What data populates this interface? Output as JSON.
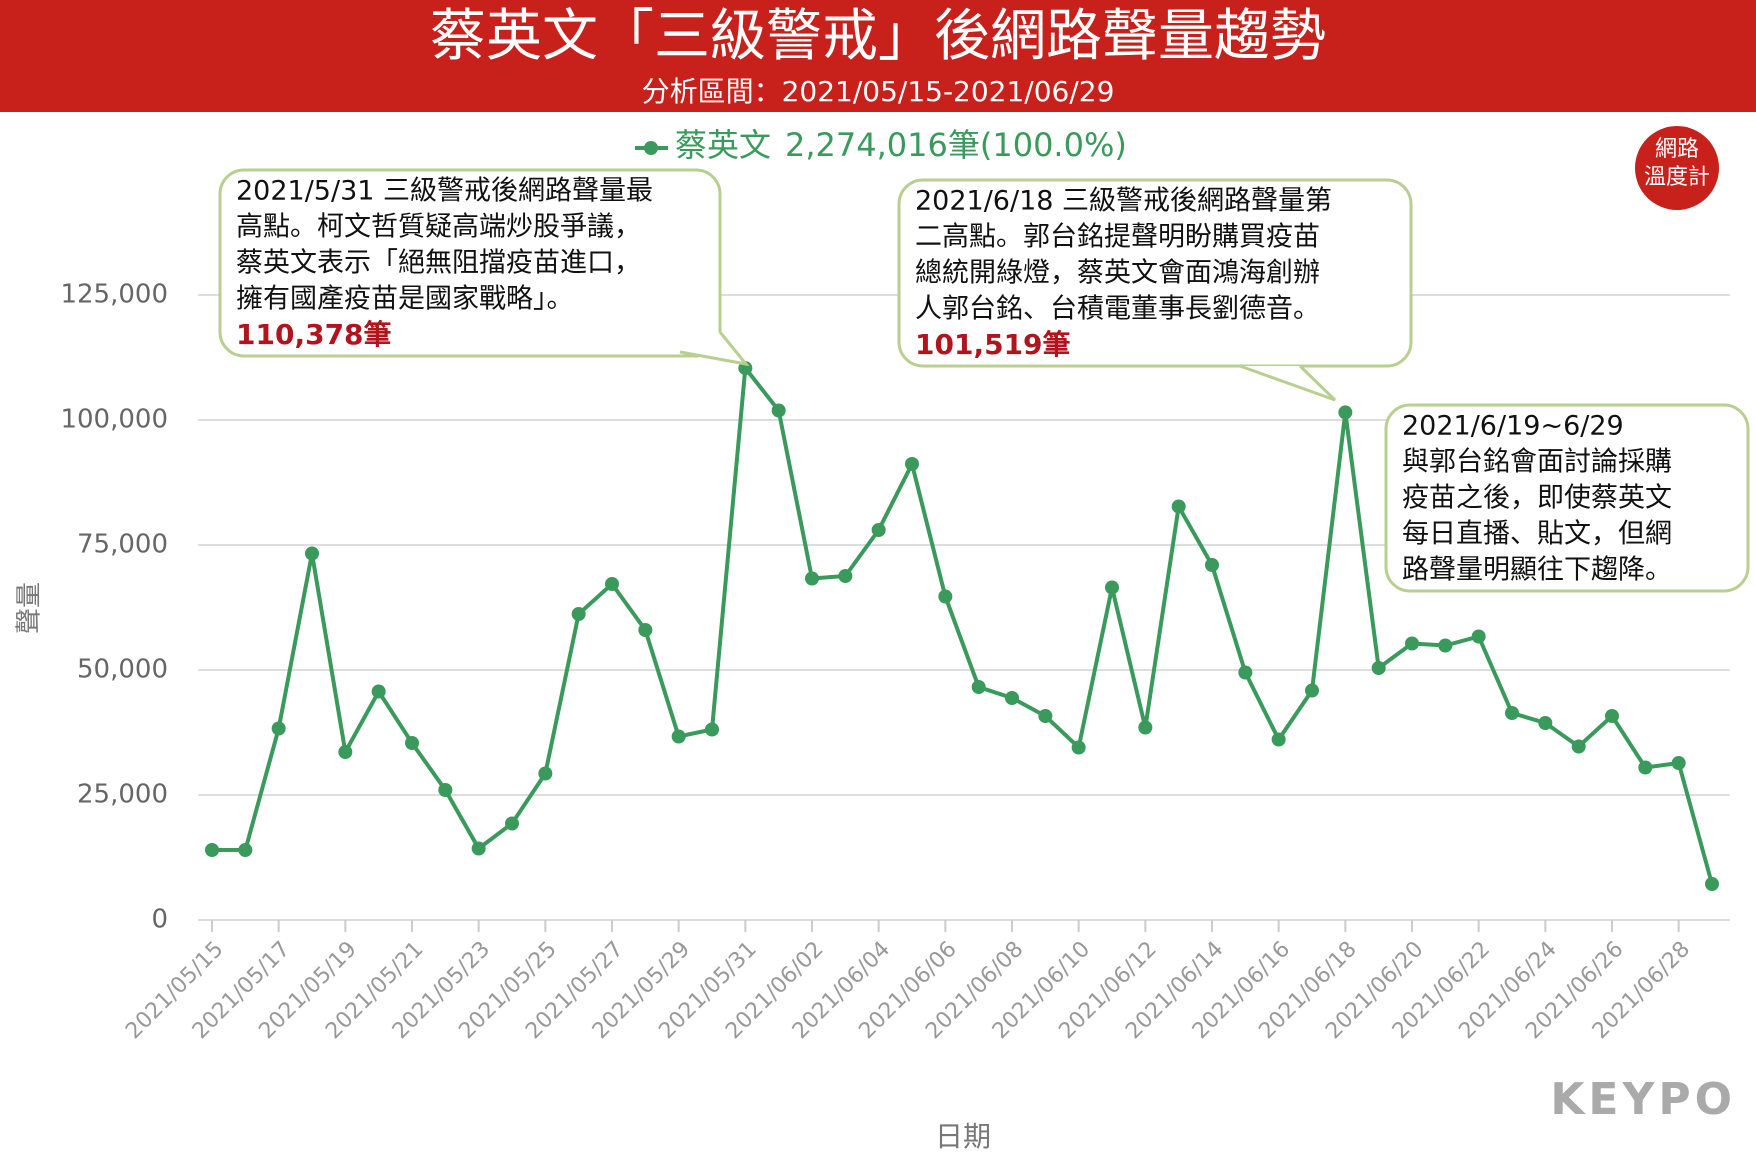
{
  "chart_data": {
    "type": "line",
    "title": "蔡英文「三級警戒」後網路聲量趨勢",
    "subtitle": "分析區間：2021/05/15-2021/06/29",
    "x_label": "日期",
    "y_label": "聲量",
    "categories": [
      "2021/05/15",
      null,
      "2021/05/17",
      null,
      "2021/05/19",
      null,
      "2021/05/21",
      null,
      "2021/05/23",
      null,
      "2021/05/25",
      null,
      "2021/05/27",
      null,
      "2021/05/29",
      null,
      "2021/05/31",
      null,
      "2021/06/02",
      null,
      "2021/06/04",
      null,
      "2021/06/06",
      null,
      "2021/06/08",
      null,
      "2021/06/10",
      null,
      "2021/06/12",
      null,
      "2021/06/14",
      null,
      "2021/06/16",
      null,
      "2021/06/18",
      null,
      "2021/06/20",
      null,
      "2021/06/22",
      null,
      "2021/06/24",
      null,
      "2021/06/26",
      null,
      "2021/06/28",
      null
    ],
    "series": [
      {
        "name": "蔡英文",
        "legend_total": "2,274,016筆(100.0%)",
        "color": "#3a9a5b",
        "values": [
          14000,
          14000,
          38300,
          73300,
          33600,
          45700,
          35400,
          26000,
          14300,
          19300,
          29300,
          61200,
          67200,
          58000,
          36700,
          38100,
          110378,
          101900,
          68300,
          68800,
          78000,
          91200,
          64700,
          46600,
          44400,
          40800,
          34500,
          66500,
          38500,
          82700,
          71000,
          49500,
          36100,
          45900,
          101519,
          50400,
          55300,
          54900,
          56700,
          41400,
          39400,
          34700,
          40800,
          30500,
          31400,
          7200
        ]
      }
    ],
    "ylim": [
      0,
      125000
    ],
    "yticks": [
      0,
      {
        "value": 25000,
        "label": "25,000"
      },
      {
        "value": 50000,
        "label": "50,000"
      },
      {
        "value": 75000,
        "label": "75,000"
      },
      {
        "value": 100000,
        "label": "100,000"
      },
      {
        "value": 125000,
        "label": "125,000"
      }
    ],
    "grid": true,
    "annotations": [
      {
        "lines": [
          "2021/5/31 三級警戒後網路聲量最",
          "高點。柯文哲質疑高端炒股爭議，",
          "蔡英文表示「絕無阻擋疫苗進口，",
          "擁有國產疫苗是國家戰略」。"
        ],
        "value": 110378,
        "label": "110,378筆"
      },
      {
        "lines": [
          "2021/6/18 三級警戒後網路聲量第",
          "二高點。郭台銘提聲明盼購買疫苗",
          "總統開綠燈，蔡英文會面鴻海創辦",
          "人郭台銘、台積電董事長劉德音。"
        ],
        "value": 101519,
        "label": "101,519筆"
      },
      {
        "lines": [
          "2021/6/19~6/29",
          "與郭台銘會面討論採購",
          "疫苗之後，即使蔡英文",
          "每日直播、貼文，但網",
          "路聲量明顯往下趨降。"
        ]
      }
    ],
    "logo": [
      "網路",
      "溫度計"
    ],
    "brand": "KEYPO"
  }
}
